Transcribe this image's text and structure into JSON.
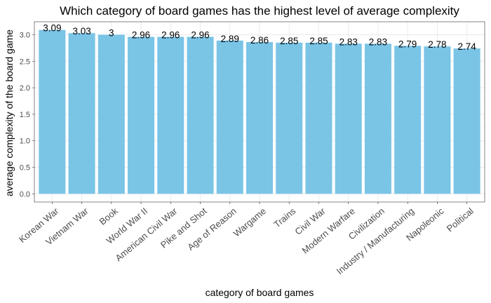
{
  "chart_data": {
    "type": "bar",
    "title": "Which category of board games has the highest level of average complexity",
    "xlabel": "category of board games",
    "ylabel": "average complexity of the board game",
    "categories": [
      "Korean War",
      "Vietnam War",
      "Book",
      "World War II",
      "American Civil War",
      "Pike and Shot",
      "Age of Reason",
      "Wargame",
      "Trains",
      "Civil War",
      "Modern Warfare",
      "Civilization",
      "Industry / Manufacturing",
      "Napoleonic",
      "Political"
    ],
    "values": [
      3.09,
      3.03,
      3,
      2.96,
      2.96,
      2.96,
      2.89,
      2.86,
      2.85,
      2.85,
      2.83,
      2.83,
      2.79,
      2.78,
      2.74
    ],
    "value_labels": [
      "3.09",
      "3.03",
      "3",
      "2.96",
      "2.96",
      "2.96",
      "2.89",
      "2.86",
      "2.85",
      "2.85",
      "2.83",
      "2.83",
      "2.79",
      "2.78",
      "2.74"
    ],
    "ylim": [
      0,
      3.09
    ],
    "yticks": [
      0,
      0.5,
      1,
      1.5,
      2,
      2.5,
      3
    ],
    "ytick_labels": [
      "0.0",
      "0.5",
      "1.0",
      "1.5",
      "2.0",
      "2.5",
      "3.0"
    ],
    "bar_color": "#7ac4e6",
    "grid": true,
    "legend": "none"
  }
}
